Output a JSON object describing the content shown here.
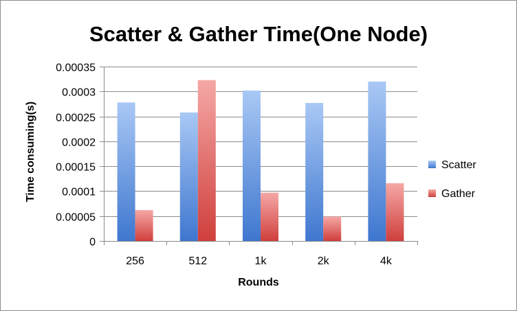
{
  "chart_data": {
    "type": "bar",
    "title": "Scatter & Gather Time(One Node)",
    "xlabel": "Rounds",
    "ylabel": "Time consuming(s)",
    "categories": [
      "256",
      "512",
      "1k",
      "2k",
      "4k"
    ],
    "series": [
      {
        "name": "Scatter",
        "values": [
          0.000278,
          0.000258,
          0.000302,
          0.000277,
          0.00032
        ],
        "color": "#5b8fd9"
      },
      {
        "name": "Gather",
        "values": [
          6.2e-05,
          0.000323,
          9.7e-05,
          4.9e-05,
          0.000116
        ],
        "color": "#d9534f"
      }
    ],
    "ylim": [
      0,
      0.00035
    ],
    "yticks": [
      "0",
      "0.00005",
      "0.0001",
      "0.00015",
      "0.0002",
      "0.00025",
      "0.0003",
      "0.00035"
    ],
    "grid": true,
    "legend_position": "right"
  }
}
